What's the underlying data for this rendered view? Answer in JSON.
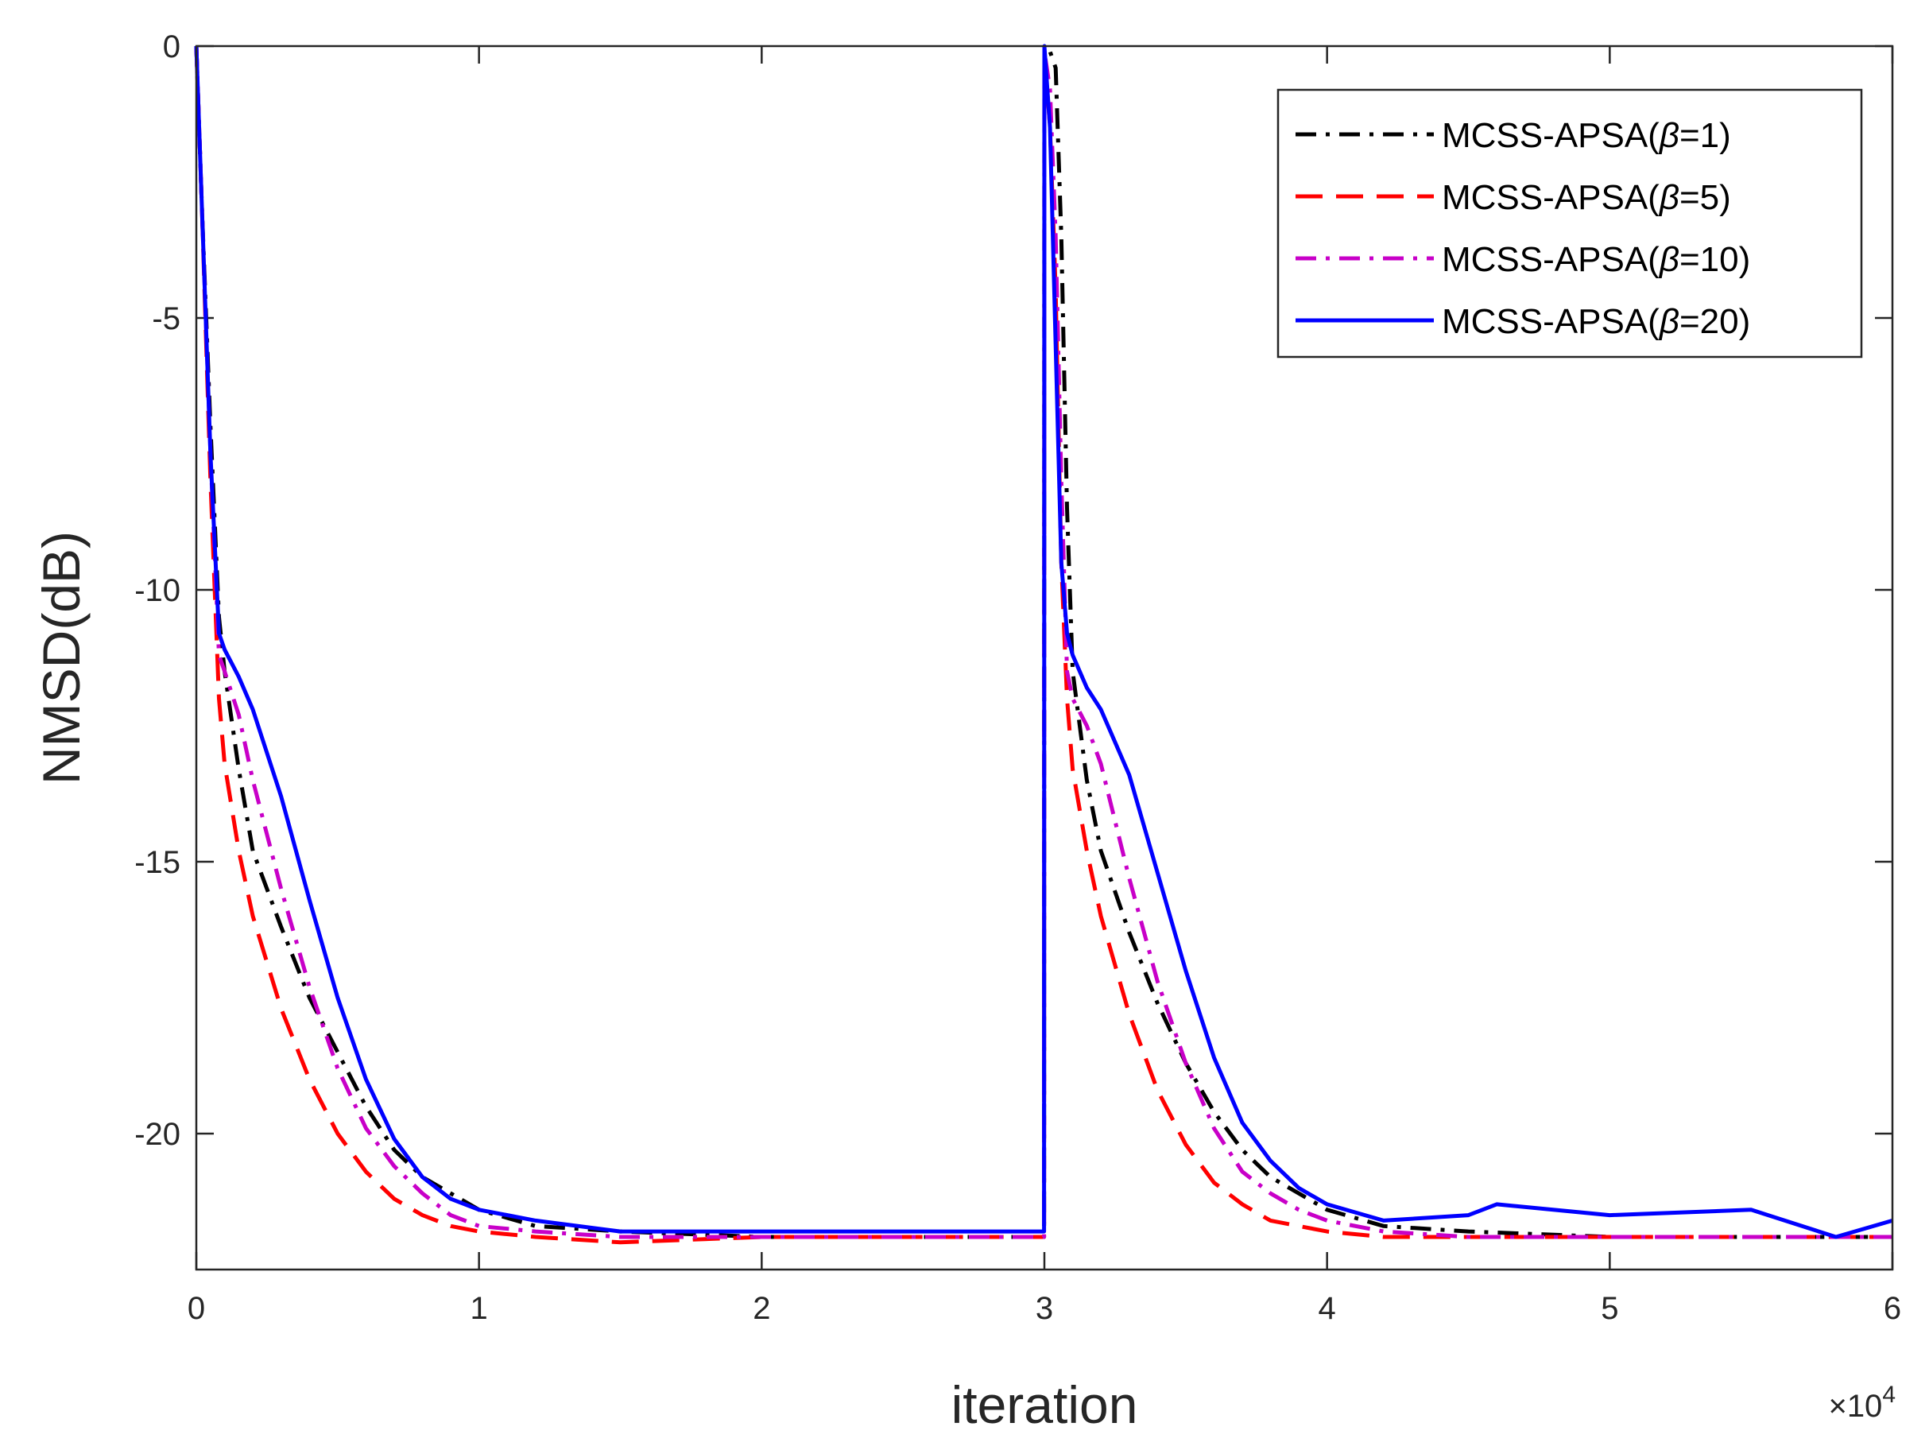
{
  "chart_data": {
    "type": "line",
    "xlabel": "iteration",
    "ylabel": "NMSD(dB)",
    "x_multiplier": "×10",
    "x_multiplier_exp": "4",
    "xlim": [
      0,
      6
    ],
    "ylim": [
      -22.5,
      0
    ],
    "x_ticks": [
      0,
      1,
      2,
      3,
      4,
      5,
      6
    ],
    "x_tick_labels": [
      "0",
      "1",
      "2",
      "3",
      "4",
      "5",
      "6"
    ],
    "y_ticks": [
      0,
      -5,
      -10,
      -15,
      -20
    ],
    "y_tick_labels": [
      "0",
      "-5",
      "-10",
      "-15",
      "-20"
    ],
    "legend_location": "top-right",
    "series": [
      {
        "name": "MCSS-APSA(β=1)",
        "label_prefix": "MCSS-APSA(",
        "label_symbol": "β",
        "label_suffix": "=1)",
        "color": "#000000",
        "style": "dash-dot",
        "x": [
          0,
          0.02,
          0.05,
          0.08,
          0.1,
          0.15,
          0.2,
          0.3,
          0.4,
          0.5,
          0.6,
          0.7,
          0.8,
          0.9,
          1.0,
          1.2,
          1.5,
          2.0,
          2.5,
          2.999,
          3.0,
          3.02,
          3.04,
          3.06,
          3.08,
          3.1,
          3.15,
          3.2,
          3.3,
          3.4,
          3.5,
          3.6,
          3.7,
          3.8,
          3.9,
          4.0,
          4.2,
          4.5,
          5.0,
          5.5,
          6.0
        ],
        "y": [
          0,
          -3,
          -7,
          -10.5,
          -11.5,
          -13.3,
          -14.8,
          -16.2,
          -17.5,
          -18.5,
          -19.5,
          -20.3,
          -20.8,
          -21.1,
          -21.4,
          -21.7,
          -21.8,
          -21.9,
          -21.9,
          -21.9,
          -0.1,
          -0.1,
          -0.4,
          -3.5,
          -8.5,
          -11.5,
          -13.5,
          -14.8,
          -16.3,
          -17.6,
          -18.7,
          -19.6,
          -20.3,
          -20.8,
          -21.1,
          -21.4,
          -21.7,
          -21.8,
          -21.9,
          -21.9,
          -21.9
        ]
      },
      {
        "name": "MCSS-APSA(β=5)",
        "label_prefix": "MCSS-APSA(",
        "label_symbol": "β",
        "label_suffix": "=5)",
        "color": "#ff0000",
        "style": "dashed",
        "x": [
          0,
          0.02,
          0.05,
          0.08,
          0.1,
          0.15,
          0.2,
          0.3,
          0.4,
          0.5,
          0.6,
          0.7,
          0.8,
          0.9,
          1.0,
          1.2,
          1.5,
          2.0,
          2.5,
          2.999,
          3.0,
          3.02,
          3.04,
          3.06,
          3.08,
          3.1,
          3.15,
          3.2,
          3.3,
          3.4,
          3.5,
          3.6,
          3.7,
          3.8,
          3.9,
          4.0,
          4.2,
          4.5,
          5.0,
          5.5,
          6.0
        ],
        "y": [
          0,
          -3,
          -8,
          -12,
          -13.2,
          -14.8,
          -16.0,
          -17.7,
          -19.0,
          -20.0,
          -20.7,
          -21.2,
          -21.5,
          -21.7,
          -21.8,
          -21.9,
          -22.0,
          -21.9,
          -21.9,
          -21.9,
          -0.1,
          -1.5,
          -4.5,
          -9.5,
          -12.0,
          -13.3,
          -14.8,
          -16.0,
          -17.8,
          -19.2,
          -20.2,
          -20.9,
          -21.3,
          -21.6,
          -21.7,
          -21.8,
          -21.9,
          -21.9,
          -21.9,
          -21.9,
          -21.9
        ]
      },
      {
        "name": "MCSS-APSA(β=10)",
        "label_prefix": "MCSS-APSA(",
        "label_symbol": "β",
        "label_suffix": "=10)",
        "color": "#c800c8",
        "style": "dash-dot",
        "x": [
          0,
          0.02,
          0.05,
          0.08,
          0.1,
          0.15,
          0.2,
          0.3,
          0.4,
          0.5,
          0.6,
          0.7,
          0.8,
          0.9,
          1.0,
          1.2,
          1.5,
          2.0,
          2.5,
          2.999,
          3.0,
          3.02,
          3.04,
          3.06,
          3.08,
          3.1,
          3.15,
          3.2,
          3.3,
          3.4,
          3.5,
          3.6,
          3.7,
          3.8,
          3.9,
          4.0,
          4.2,
          4.5,
          5.0,
          5.5,
          6.0
        ],
        "y": [
          0,
          -3,
          -7.5,
          -11.2,
          -11.5,
          -12.3,
          -13.5,
          -15.5,
          -17.3,
          -18.8,
          -19.9,
          -20.6,
          -21.1,
          -21.5,
          -21.7,
          -21.8,
          -21.9,
          -21.9,
          -21.9,
          -21.9,
          -0.1,
          -0.8,
          -3.5,
          -8,
          -11.5,
          -12.0,
          -12.5,
          -13.2,
          -15.3,
          -17.2,
          -18.7,
          -19.9,
          -20.7,
          -21.1,
          -21.4,
          -21.6,
          -21.8,
          -21.9,
          -21.9,
          -21.9,
          -21.9
        ]
      },
      {
        "name": "MCSS-APSA(β=20)",
        "label_prefix": "MCSS-APSA(",
        "label_symbol": "β",
        "label_suffix": "=20)",
        "color": "#0000ff",
        "style": "solid",
        "x": [
          0,
          0.02,
          0.05,
          0.08,
          0.1,
          0.15,
          0.2,
          0.3,
          0.4,
          0.5,
          0.6,
          0.7,
          0.8,
          0.9,
          1.0,
          1.2,
          1.5,
          2.0,
          2.5,
          2.999,
          3.0,
          3.02,
          3.04,
          3.06,
          3.08,
          3.1,
          3.15,
          3.2,
          3.3,
          3.4,
          3.5,
          3.6,
          3.7,
          3.8,
          3.9,
          4.0,
          4.2,
          4.5,
          4.6,
          5.0,
          5.5,
          5.8,
          6.0
        ],
        "y": [
          0,
          -3,
          -7.5,
          -10.8,
          -11.1,
          -11.6,
          -12.2,
          -13.8,
          -15.7,
          -17.5,
          -19.0,
          -20.1,
          -20.8,
          -21.2,
          -21.4,
          -21.6,
          -21.8,
          -21.8,
          -21.8,
          -21.8,
          0,
          -1.5,
          -5.5,
          -9.5,
          -10.8,
          -11.2,
          -11.8,
          -12.2,
          -13.4,
          -15.2,
          -17.0,
          -18.6,
          -19.8,
          -20.5,
          -21.0,
          -21.3,
          -21.6,
          -21.5,
          -21.3,
          -21.5,
          -21.4,
          -21.9,
          -21.6
        ]
      }
    ]
  }
}
